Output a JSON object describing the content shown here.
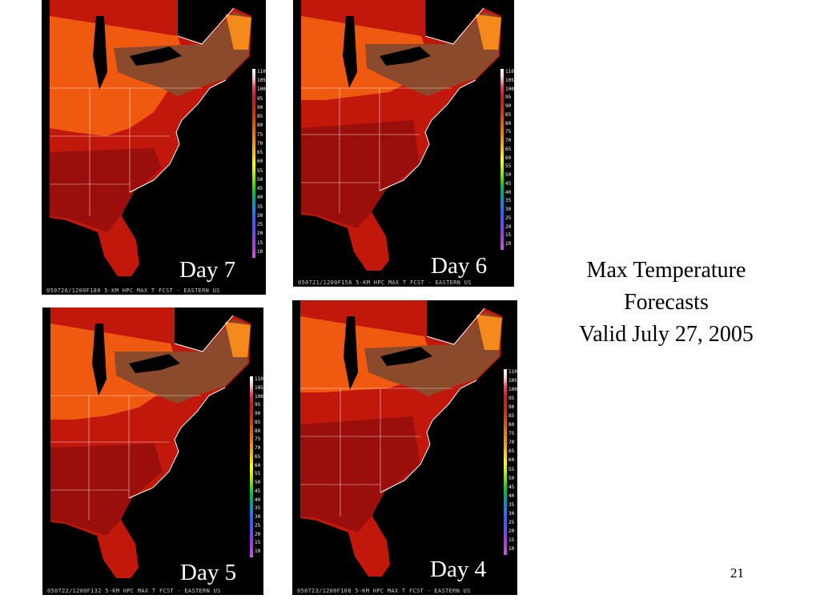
{
  "title_lines": [
    "Max Temperature",
    "Forecasts",
    "Valid July 27, 2005"
  ],
  "slide_number": "21",
  "legend_ticks": [
    "110",
    "105",
    "100",
    "95",
    "90",
    "85",
    "80",
    "75",
    "70",
    "65",
    "60",
    "55",
    "50",
    "45",
    "40",
    "35",
    "30",
    "25",
    "20",
    "15",
    "10"
  ],
  "legend_colors": [
    "#ffffff",
    "#f7c8c8",
    "#e04060",
    "#c02020",
    "#c82810",
    "#d04000",
    "#e06000",
    "#e88000",
    "#f0a000",
    "#f8c800",
    "#ffff00",
    "#c0f000",
    "#60e000",
    "#00c040",
    "#00a0a0",
    "#2080e0",
    "#3060f0",
    "#6050f0",
    "#9040e0",
    "#b040d0",
    "#c060e0"
  ],
  "map_colors": {
    "deep": "#9a0f0b",
    "red": "#c2180c",
    "orange": "#f05a10",
    "brown": "#8c4a2c",
    "amber": "#f58a1c",
    "ocean": "#000000",
    "lines": "#ffffff"
  },
  "panels": [
    {
      "label": "Day 7",
      "caption": "050720/1200F180 5-KM HPC MAX T FCST - EASTERN US"
    },
    {
      "label": "Day 6",
      "caption": "050721/1200F156 5-KM HPC MAX T FCST - EASTERN US"
    },
    {
      "label": "Day 5",
      "caption": "050722/1200F132 5-KM HPC MAX T FCST - EASTERN US"
    },
    {
      "label": "Day 4",
      "caption": "050723/1200F108 5-KM HPC MAX T FCST - EASTERN US"
    }
  ]
}
